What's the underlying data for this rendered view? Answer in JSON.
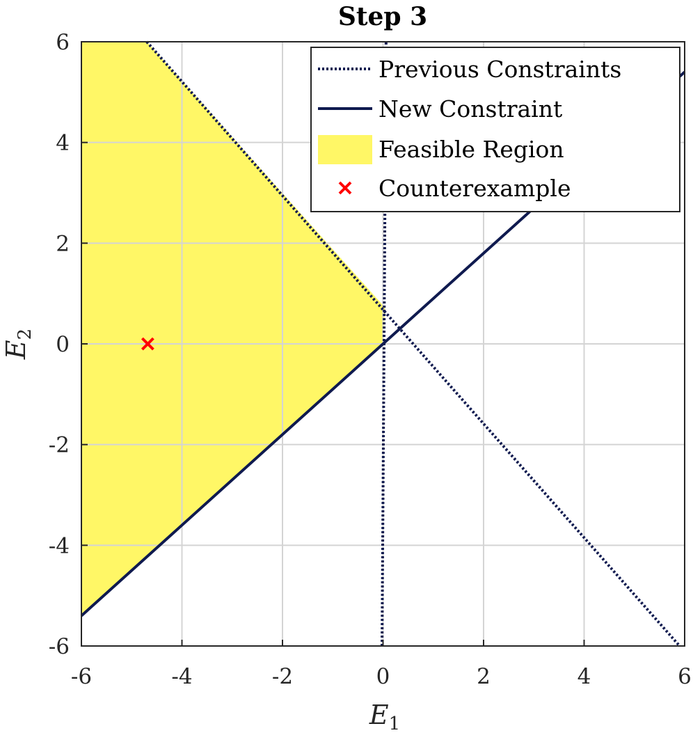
{
  "chart_data": {
    "type": "line",
    "title": "Step 3",
    "xlabel": {
      "main": "E",
      "sub": "1"
    },
    "ylabel": {
      "main": "E",
      "sub": "2"
    },
    "xlim": [
      -6,
      6
    ],
    "ylim": [
      -6,
      6
    ],
    "xticks": [
      "-6",
      "-4",
      "-2",
      "0",
      "2",
      "4",
      "6"
    ],
    "yticks": [
      "-6",
      "-4",
      "-2",
      "0",
      "2",
      "4",
      "6"
    ],
    "grid": true,
    "legend_position": "top-right",
    "legend": [
      {
        "label": "Previous Constraints",
        "style": "dotted-line"
      },
      {
        "label": "New Constraint",
        "style": "solid-line"
      },
      {
        "label": "Feasible Region",
        "style": "patch"
      },
      {
        "label": "Counterexample",
        "style": "x-marker"
      }
    ],
    "series": [
      {
        "name": "Previous Constraints",
        "style": "dotted",
        "segments": [
          [
            [
              -4.7,
              6.0
            ],
            [
              5.9,
              -6.0
            ]
          ],
          [
            [
              -0.02,
              -6.0
            ],
            [
              0.06,
              6.0
            ]
          ]
        ]
      },
      {
        "name": "New Constraint",
        "style": "solid",
        "segments": [
          [
            [
              -6.0,
              -5.4
            ],
            [
              6.0,
              5.4
            ]
          ]
        ]
      }
    ],
    "feasible_region": [
      [
        -6.0,
        6.0
      ],
      [
        -4.7,
        6.0
      ],
      [
        0.04,
        0.72
      ],
      [
        0.0,
        0.0
      ],
      [
        -6.0,
        -5.4
      ]
    ],
    "counterexample": {
      "x": -4.68,
      "y": 0.0
    },
    "colors": {
      "line": "#0f1a4f",
      "feasible": "#fff766",
      "marker": "#ff0000",
      "grid": "#d4d4d4",
      "axis": "#262626"
    }
  }
}
